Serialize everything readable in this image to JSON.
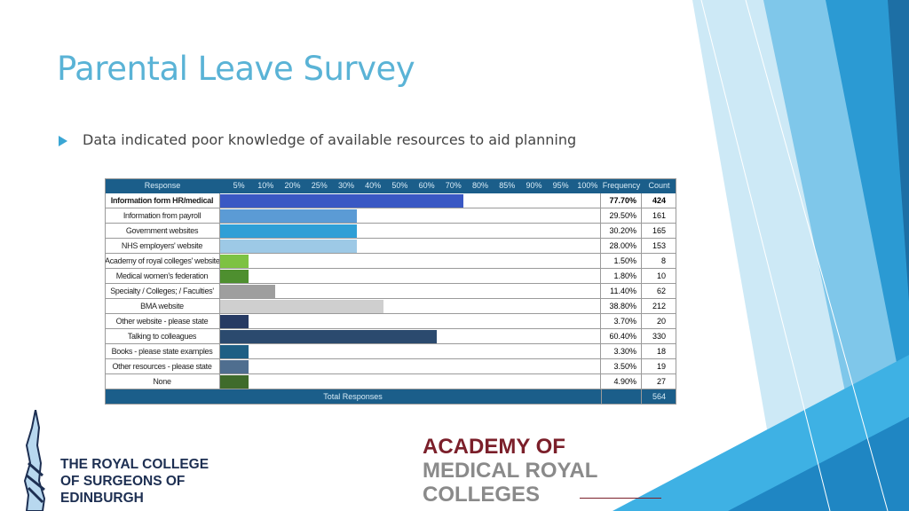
{
  "slide": {
    "title": "Parental Leave Survey",
    "bullet": "Data indicated poor knowledge of available resources to aid planning"
  },
  "table": {
    "headers": {
      "response": "Response",
      "scale": [
        "5%",
        "10%",
        "20%",
        "25%",
        "30%",
        "40%",
        "50%",
        "60%",
        "70%",
        "80%",
        "85%",
        "90%",
        "95%",
        "100%"
      ],
      "frequency": "Frequency",
      "count": "Count"
    },
    "rows": [
      {
        "label": "Information form HR/medical",
        "frequency": "77.70%",
        "count": "424",
        "bar_fraction": 0.639,
        "color": "#3a58c4",
        "bold": true
      },
      {
        "label": "Information from payroll",
        "frequency": "29.50%",
        "count": "161",
        "bar_fraction": 0.358,
        "color": "#5b9bd5",
        "bold": false
      },
      {
        "label": "Government websites",
        "frequency": "30.20%",
        "count": "165",
        "bar_fraction": 0.358,
        "color": "#2f9fd6",
        "bold": false
      },
      {
        "label": "NHS employers' website",
        "frequency": "28.00%",
        "count": "153",
        "bar_fraction": 0.358,
        "color": "#9dc9e6",
        "bold": false
      },
      {
        "label": "Academy of royal colleges' website",
        "frequency": "1.50%",
        "count": "8",
        "bar_fraction": 0.074,
        "color": "#7dc242",
        "bold": false
      },
      {
        "label": "Medical women's federation",
        "frequency": "1.80%",
        "count": "10",
        "bar_fraction": 0.074,
        "color": "#4e8f2f",
        "bold": false
      },
      {
        "label": "Specialty / Colleges; / Faculties'",
        "frequency": "11.40%",
        "count": "62",
        "bar_fraction": 0.144,
        "color": "#9e9e9e",
        "bold": false
      },
      {
        "label": "BMA website",
        "frequency": "38.80%",
        "count": "212",
        "bar_fraction": 0.428,
        "color": "#cfcfcf",
        "bold": false
      },
      {
        "label": "Other website - please state",
        "frequency": "3.70%",
        "count": "20",
        "bar_fraction": 0.074,
        "color": "#263a63",
        "bold": false
      },
      {
        "label": "Talking to colleagues",
        "frequency": "60.40%",
        "count": "330",
        "bar_fraction": 0.568,
        "color": "#2b4a6e",
        "bold": false
      },
      {
        "label": "Books - please state examples",
        "frequency": "3.30%",
        "count": "18",
        "bar_fraction": 0.074,
        "color": "#1e5f84",
        "bold": false
      },
      {
        "label": "Other resources - please state",
        "frequency": "3.50%",
        "count": "19",
        "bar_fraction": 0.074,
        "color": "#4f6e8f",
        "bold": false
      },
      {
        "label": "None",
        "frequency": "4.90%",
        "count": "27",
        "bar_fraction": 0.074,
        "color": "#3f6b2b",
        "bold": false
      }
    ],
    "total": {
      "label": "Total Responses",
      "count": "564"
    }
  },
  "logos": {
    "rcs": {
      "line1": "THE ROYAL COLLEGE",
      "line2": "OF SURGEONS OF",
      "line3": "EDINBURGH",
      "icon": "rcs-crest-icon"
    },
    "amrc": {
      "line1": "ACADEMY OF",
      "line2": "MEDICAL ROYAL",
      "line3": "COLLEGES"
    }
  },
  "colors": {
    "title": "#5ab3d6",
    "header_bg": "#1b5e8a",
    "accent": "#3aa6d4"
  }
}
